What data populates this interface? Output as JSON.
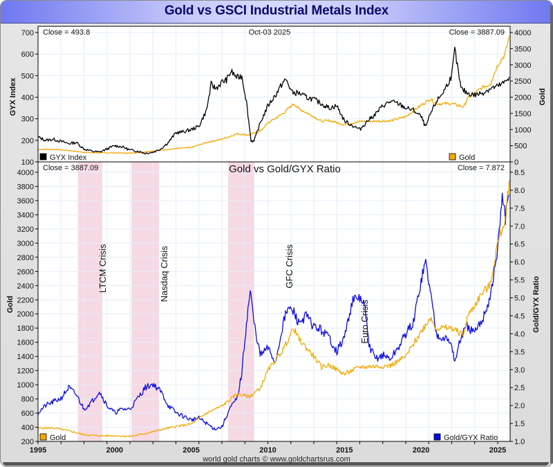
{
  "title": "Gold vs GSCI Industrial Metals Index",
  "footer": "world gold charts © www.goldchartsrus.com",
  "colors": {
    "gyx": "#000000",
    "gold": "#f5a800",
    "ratio": "#0a0ae6",
    "crisis_band": "#f7d9e3",
    "grid": "#e2eef8",
    "title_text": "#0a0a6a"
  },
  "chart_data": [
    {
      "type": "line",
      "panel": "top",
      "title": "",
      "date_label": "Oct-03  2025",
      "left_close_label": "Close = 493.8",
      "right_close_label": "Close = 3887.09",
      "ylabel_left": "GYX Index",
      "ylabel_right": "Gold",
      "ylim_left": [
        100,
        700
      ],
      "ylim_right": [
        0,
        4000
      ],
      "yticks_left": [
        "100",
        "200",
        "300",
        "400",
        "500",
        "600",
        "700"
      ],
      "yticks_right": [
        "0",
        "500",
        "1000",
        "1500",
        "2000",
        "2500",
        "3000",
        "3500",
        "4000"
      ],
      "xlim": [
        1995,
        2025.8
      ],
      "grid": true,
      "legend": [
        {
          "name": "GYX Index",
          "placement": "bottom-left"
        },
        {
          "name": "Gold",
          "placement": "bottom-right"
        }
      ],
      "series": [
        {
          "name": "GYX Index",
          "axis": "left",
          "x": [
            1995,
            1995.5,
            1996,
            1996.5,
            1997,
            1997.5,
            1998,
            1998.5,
            1999,
            1999.5,
            2000,
            2000.5,
            2001,
            2001.5,
            2002,
            2002.5,
            2003,
            2003.5,
            2004,
            2004.5,
            2005,
            2005.5,
            2006,
            2006.3,
            2006.6,
            2007,
            2007.3,
            2007.6,
            2008,
            2008.3,
            2008.6,
            2008.9,
            2009.1,
            2009.5,
            2010,
            2010.5,
            2011,
            2011.2,
            2011.6,
            2012,
            2012.5,
            2013,
            2013.5,
            2014,
            2014.5,
            2015,
            2015.5,
            2016,
            2016.5,
            2017,
            2017.5,
            2018,
            2018.5,
            2019,
            2019.5,
            2020,
            2020.3,
            2020.6,
            2021,
            2021.5,
            2022,
            2022.2,
            2022.6,
            2023,
            2023.5,
            2024,
            2024.5,
            2025,
            2025.5,
            2025.75
          ],
          "y": [
            215,
            200,
            205,
            195,
            185,
            190,
            160,
            150,
            145,
            160,
            175,
            170,
            155,
            150,
            140,
            145,
            160,
            190,
            235,
            240,
            250,
            265,
            340,
            460,
            440,
            470,
            480,
            520,
            490,
            500,
            380,
            200,
            195,
            280,
            360,
            410,
            470,
            480,
            420,
            420,
            400,
            390,
            370,
            350,
            360,
            290,
            270,
            250,
            290,
            320,
            360,
            380,
            370,
            350,
            340,
            310,
            260,
            320,
            380,
            430,
            500,
            620,
            440,
            420,
            410,
            420,
            440,
            450,
            470,
            494
          ]
        },
        {
          "name": "Gold",
          "axis": "right",
          "x": [
            1995,
            1996,
            1997,
            1998,
            1999,
            2000,
            2001,
            2002,
            2003,
            2004,
            2005,
            2006,
            2007,
            2008,
            2008.8,
            2009.5,
            2010,
            2011,
            2011.7,
            2012,
            2013,
            2013.5,
            2014,
            2015,
            2016,
            2017,
            2018,
            2019,
            2020,
            2020.6,
            2021,
            2022,
            2022.8,
            2023,
            2024,
            2024.5,
            2025,
            2025.5,
            2025.75
          ],
          "y": [
            385,
            390,
            350,
            295,
            280,
            280,
            270,
            310,
            365,
            410,
            445,
            600,
            700,
            870,
            830,
            950,
            1200,
            1500,
            1800,
            1650,
            1400,
            1250,
            1280,
            1150,
            1250,
            1260,
            1270,
            1400,
            1750,
            1950,
            1800,
            1800,
            1700,
            1950,
            2300,
            2400,
            3000,
            3350,
            3887
          ]
        }
      ]
    },
    {
      "type": "line",
      "panel": "bottom",
      "title": "Gold vs Gold/GYX Ratio",
      "left_close_label": "Close = 3887.09",
      "right_close_label": "Close = 7.872",
      "ylabel_left": "Gold",
      "ylabel_right": "Gold/GYX Ratio",
      "ylim_left": [
        200,
        4000
      ],
      "ylim_right": [
        1.0,
        8.5
      ],
      "yticks_left": [
        "200",
        "400",
        "600",
        "800",
        "1000",
        "1200",
        "1400",
        "1600",
        "1800",
        "2000",
        "2200",
        "2400",
        "2600",
        "2800",
        "3000",
        "3200",
        "3400",
        "3600",
        "3800",
        "4000"
      ],
      "yticks_right": [
        "1.0",
        "1.5",
        "2.0",
        "2.5",
        "3.0",
        "3.5",
        "4.0",
        "4.5",
        "5.0",
        "5.5",
        "6.0",
        "6.5",
        "7.0",
        "7.5",
        "8.0",
        "8.5"
      ],
      "xticks": [
        "1995",
        "2000",
        "2005",
        "2010",
        "2015",
        "2020",
        "2025"
      ],
      "xlim": [
        1995,
        2025.8
      ],
      "grid": true,
      "legend": [
        {
          "name": "Gold",
          "placement": "bottom-left"
        },
        {
          "name": "Gold/GYX Ratio",
          "placement": "bottom-right"
        }
      ],
      "annotations": [
        {
          "label": "LTCM Crisis",
          "x_start": 1997.6,
          "x_end": 1999.2
        },
        {
          "label": "Nasdaq Crisis",
          "x_start": 2001.1,
          "x_end": 2002.9
        },
        {
          "label": "GFC Crisis",
          "x_start": 2007.4,
          "x_end": 2009.1
        },
        {
          "label": "Euro Crisis",
          "x": 2016.3
        }
      ],
      "series": [
        {
          "name": "Gold",
          "axis": "left",
          "x": [
            1995,
            1996,
            1997,
            1998,
            1999,
            2000,
            2001,
            2002,
            2003,
            2004,
            2005,
            2006,
            2007,
            2008,
            2008.8,
            2009.5,
            2010,
            2011,
            2011.7,
            2012,
            2013,
            2013.5,
            2014,
            2015,
            2016,
            2017,
            2018,
            2019,
            2020,
            2020.6,
            2021,
            2022,
            2022.8,
            2023,
            2024,
            2024.5,
            2025,
            2025.5,
            2025.75
          ],
          "y": [
            385,
            390,
            350,
            295,
            280,
            280,
            270,
            310,
            365,
            410,
            445,
            600,
            700,
            870,
            830,
            950,
            1200,
            1500,
            1800,
            1650,
            1400,
            1250,
            1280,
            1150,
            1250,
            1260,
            1270,
            1400,
            1750,
            1950,
            1800,
            1800,
            1700,
            1950,
            2300,
            2400,
            3000,
            3350,
            3887
          ]
        },
        {
          "name": "Gold/GYX Ratio",
          "axis": "right",
          "x": [
            1995,
            1995.5,
            1996,
            1996.5,
            1997,
            1997.5,
            1998,
            1998.5,
            1999,
            1999.5,
            2000,
            2000.5,
            2001,
            2001.5,
            2002,
            2002.5,
            2003,
            2003.5,
            2004,
            2004.5,
            2005,
            2005.5,
            2006,
            2006.5,
            2007,
            2007.5,
            2008,
            2008.3,
            2008.6,
            2008.85,
            2009.1,
            2009.5,
            2010,
            2010.5,
            2011,
            2011.3,
            2011.7,
            2012,
            2012.5,
            2013,
            2013.5,
            2014,
            2014.5,
            2015,
            2015.5,
            2016,
            2016.3,
            2016.6,
            2017,
            2017.5,
            2018,
            2018.5,
            2019,
            2019.5,
            2020,
            2020.3,
            2020.6,
            2021,
            2021.5,
            2022,
            2022.2,
            2022.6,
            2023,
            2023.5,
            2024,
            2024.5,
            2025,
            2025.3,
            2025.5,
            2025.75
          ],
          "y": [
            1.8,
            2.0,
            2.1,
            2.2,
            2.5,
            2.3,
            1.9,
            2.1,
            2.4,
            2.0,
            1.8,
            1.9,
            1.9,
            2.2,
            2.5,
            2.6,
            2.4,
            2.0,
            1.8,
            1.7,
            1.6,
            1.65,
            1.5,
            1.35,
            1.4,
            1.9,
            2.2,
            2.9,
            4.3,
            5.2,
            4.3,
            3.4,
            3.6,
            3.2,
            4.3,
            4.7,
            4.6,
            4.3,
            4.5,
            4.2,
            4.1,
            3.9,
            3.5,
            3.9,
            4.9,
            5.0,
            4.8,
            3.7,
            3.3,
            3.4,
            3.3,
            3.6,
            4.0,
            4.3,
            5.5,
            6.0,
            5.2,
            4.0,
            3.9,
            3.7,
            3.2,
            3.9,
            4.2,
            4.0,
            4.4,
            5.0,
            6.3,
            7.9,
            7.2,
            7.87
          ]
        }
      ]
    }
  ]
}
